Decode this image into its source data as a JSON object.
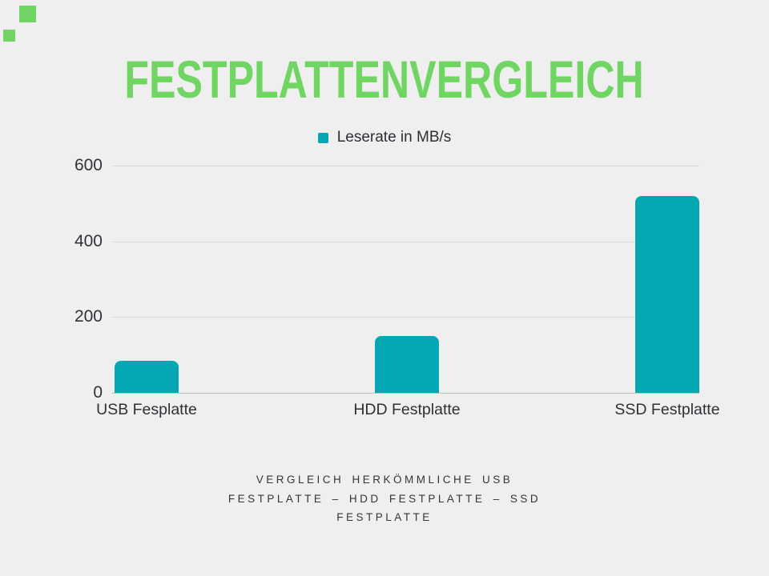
{
  "page": {
    "background_color": "#EEEFEE"
  },
  "accent": {
    "color": "#70D563"
  },
  "title": {
    "text": "FESTPLATTENVERGLEICH",
    "color": "#70D563"
  },
  "legend": {
    "label": "Leserate in MB/s",
    "swatch_color": "#05A8B2"
  },
  "chart_data": {
    "type": "bar",
    "title": "FESTPLATTENVERGLEICH",
    "categories": [
      "USB Fesplatte",
      "HDD Festplatte",
      "SSD Festplatte"
    ],
    "values": [
      85,
      150,
      520
    ],
    "series_name": "Leserate in MB/s",
    "xlabel": "",
    "ylabel": "",
    "ylim": [
      0,
      600
    ],
    "yticks": [
      0,
      200,
      400,
      600
    ],
    "bar_color": "#05A8B2",
    "grid": true,
    "gridline_color": "#d8d9d7",
    "axisline_color": "#bcbebc",
    "legend_position": "top-center"
  },
  "caption": {
    "lines": [
      "VERGLEICH HERKÖMMLICHE USB",
      "FESTPLATTE – HDD FESTPLATTE – SSD",
      "FESTPLATTE"
    ]
  }
}
